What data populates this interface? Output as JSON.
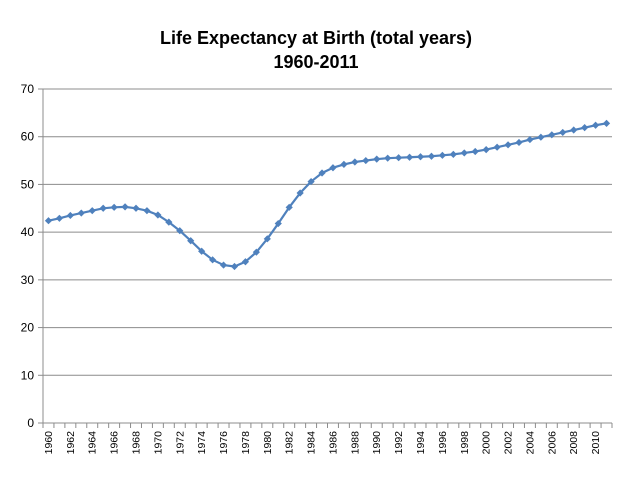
{
  "chart_data": {
    "type": "line",
    "title": "Life Expectancy at Birth (total years)",
    "subtitle": "1960-2011",
    "xlabel": "",
    "ylabel": "",
    "ylim": [
      0,
      70
    ],
    "yticks": [
      "0",
      "10",
      "20",
      "30",
      "40",
      "50",
      "60",
      "70"
    ],
    "grid": true,
    "legend": "none",
    "x": [
      1960,
      1961,
      1962,
      1963,
      1964,
      1965,
      1966,
      1967,
      1968,
      1969,
      1970,
      1971,
      1972,
      1973,
      1974,
      1975,
      1976,
      1977,
      1978,
      1979,
      1980,
      1981,
      1982,
      1983,
      1984,
      1985,
      1986,
      1987,
      1988,
      1989,
      1990,
      1991,
      1992,
      1993,
      1994,
      1995,
      1996,
      1997,
      1998,
      1999,
      2000,
      2001,
      2002,
      2003,
      2004,
      2005,
      2006,
      2007,
      2008,
      2009,
      2010,
      2011
    ],
    "xticks": [
      "1960",
      "1962",
      "1964",
      "1966",
      "1968",
      "1970",
      "1972",
      "1974",
      "1976",
      "1978",
      "1980",
      "1982",
      "1984",
      "1986",
      "1988",
      "1990",
      "1992",
      "1994",
      "1996",
      "1998",
      "2000",
      "2002",
      "2004",
      "2006",
      "2008",
      "2010"
    ],
    "series": [
      {
        "color": "#4F81BD",
        "values": [
          42.4,
          42.9,
          43.5,
          44.0,
          44.5,
          45.0,
          45.2,
          45.3,
          45.0,
          44.5,
          43.6,
          42.1,
          40.3,
          38.2,
          36.0,
          34.2,
          33.1,
          32.8,
          33.8,
          35.8,
          38.6,
          41.8,
          45.2,
          48.2,
          50.6,
          52.4,
          53.5,
          54.2,
          54.7,
          55.0,
          55.3,
          55.5,
          55.6,
          55.7,
          55.8,
          55.9,
          56.1,
          56.3,
          56.6,
          56.9,
          57.3,
          57.8,
          58.3,
          58.8,
          59.4,
          59.9,
          60.4,
          60.9,
          61.4,
          61.9,
          62.4,
          62.8
        ]
      }
    ]
  }
}
